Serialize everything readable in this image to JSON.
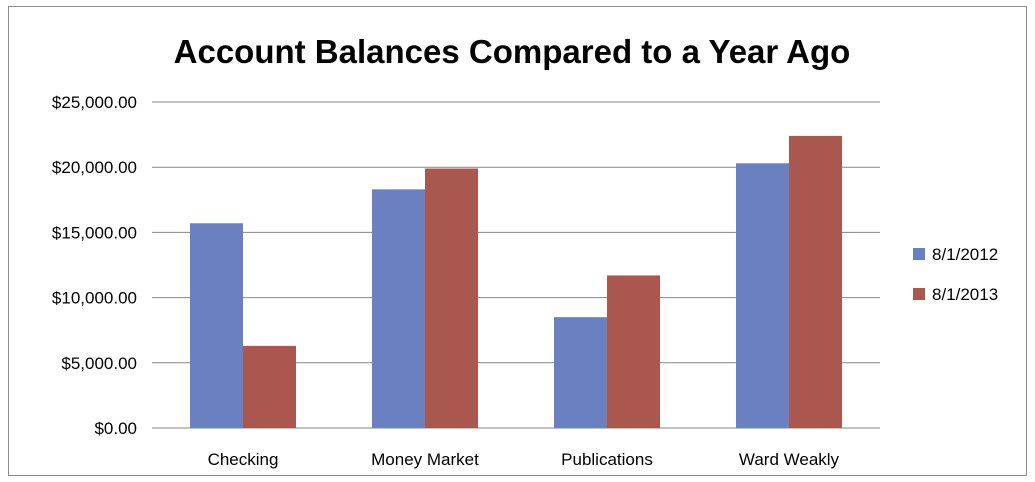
{
  "chart_data": {
    "type": "bar",
    "title": "Account Balances Compared to a Year Ago",
    "xlabel": "",
    "ylabel": "",
    "categories": [
      "Checking",
      "Money Market",
      "Publications",
      "Ward Weakly"
    ],
    "series": [
      {
        "name": "8/1/2012",
        "color": "#6a80c0",
        "values": [
          15700,
          18300,
          8500,
          20300
        ]
      },
      {
        "name": "8/1/2013",
        "color": "#a9574f",
        "values": [
          6300,
          19900,
          11700,
          22400
        ]
      }
    ],
    "ylim": [
      0,
      25000
    ],
    "yticks": [
      0,
      5000,
      10000,
      15000,
      20000,
      25000
    ],
    "ytick_labels": [
      "$0.00",
      "$5,000.00",
      "$10,000.00",
      "$15,000.00",
      "$20,000.00",
      "$25,000.00"
    ],
    "grid": true,
    "legend_position": "right"
  }
}
